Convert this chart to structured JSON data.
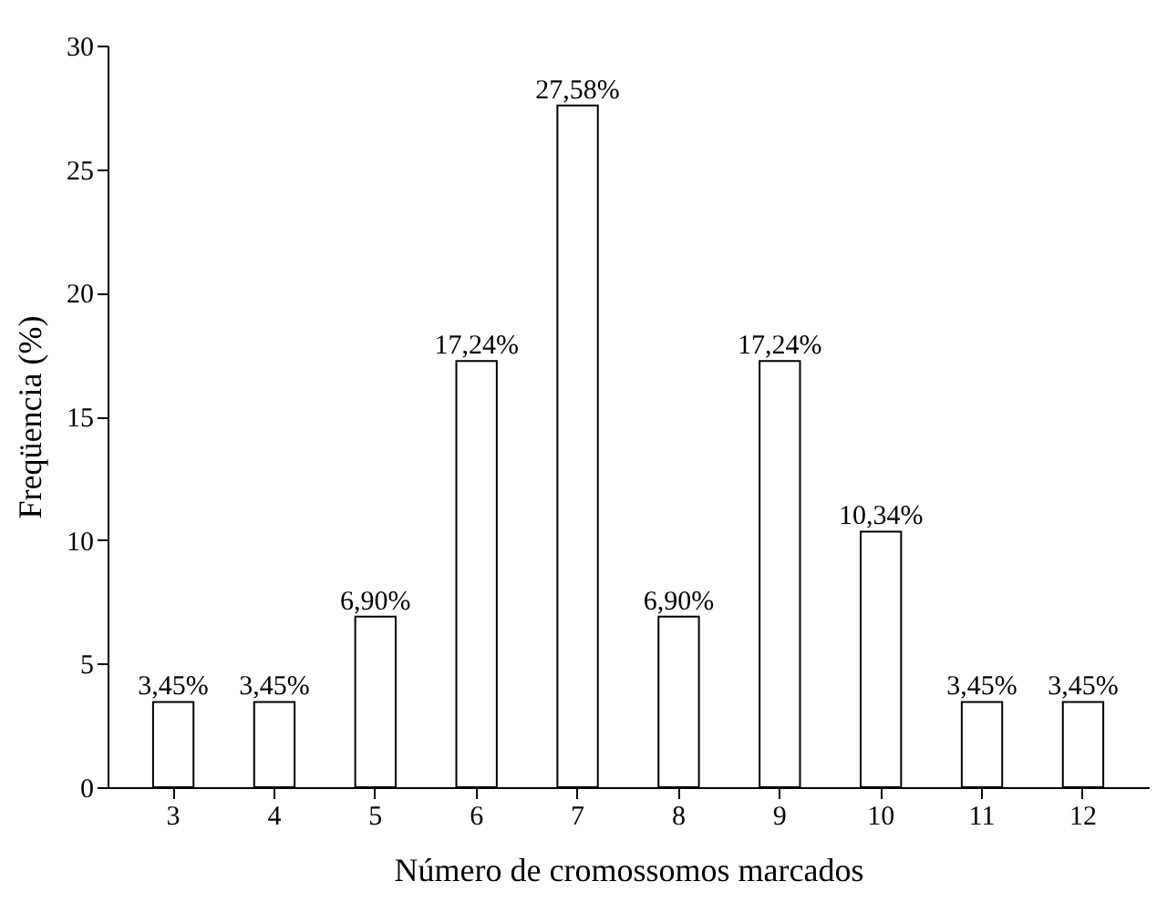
{
  "chart_data": {
    "type": "bar",
    "xlabel": "Número de cromossomos marcados",
    "ylabel": "Freqüencia (%)",
    "categories": [
      "3",
      "4",
      "5",
      "6",
      "7",
      "8",
      "9",
      "10",
      "11",
      "12"
    ],
    "values": [
      3.45,
      3.45,
      6.9,
      17.24,
      27.58,
      6.9,
      17.24,
      10.34,
      3.45,
      3.45
    ],
    "value_labels": [
      "3,45%",
      "3,45%",
      "6,90%",
      "17,24%",
      "27,58%",
      "6,90%",
      "17,24%",
      "10,34%",
      "3,45%",
      "3,45%"
    ],
    "color": "#ffffff",
    "ylim": [
      0,
      30
    ],
    "yticks": [
      0,
      5,
      10,
      15,
      20,
      25,
      30
    ],
    "grid": false
  }
}
